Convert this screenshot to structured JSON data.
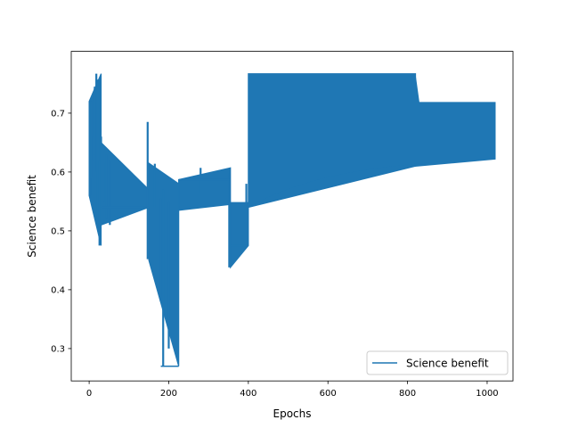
{
  "chart_data": {
    "type": "line",
    "title": "",
    "xlabel": "Epochs",
    "ylabel": "Science benefit",
    "xlim": [
      -45,
      1065
    ],
    "ylim": [
      0.245,
      0.805
    ],
    "x_ticks": [
      0,
      200,
      400,
      600,
      800,
      1000
    ],
    "y_ticks": [
      0.3,
      0.4,
      0.5,
      0.6,
      0.7
    ],
    "x_tick_labels": [
      "0",
      "200",
      "400",
      "600",
      "800",
      "1000"
    ],
    "y_tick_labels": [
      "0.3",
      "0.4",
      "0.5",
      "0.6",
      "0.7"
    ],
    "grid": false,
    "legend": {
      "position": "bottom-right",
      "entries": [
        "Science benefit"
      ]
    },
    "series": [
      {
        "name": "Science benefit",
        "color": "#1f77b4",
        "description_envelope": {
          "segments": [
            {
              "x": [
                0,
                30
              ],
              "upper": [
                0.72,
                0.767
              ],
              "lower": [
                0.56,
                0.475
              ]
            },
            {
              "x": [
                30,
                150
              ],
              "upper": [
                0.65,
                0.57
              ],
              "lower": [
                0.51,
                0.54
              ]
            },
            {
              "x": [
                150,
                225
              ],
              "upper": [
                0.615,
                0.58
              ],
              "lower": [
                0.45,
                0.27
              ]
            },
            {
              "x": [
                225,
                355
              ],
              "upper": [
                0.587,
                0.607
              ],
              "lower": [
                0.535,
                0.545
              ]
            },
            {
              "x": [
                355,
                400
              ],
              "upper": [
                0.548,
                0.548
              ],
              "lower": [
                0.438,
                0.475
              ]
            },
            {
              "x": [
                400,
                820
              ],
              "upper": [
                0.767,
                0.767
              ],
              "lower": [
                0.54,
                0.61
              ]
            },
            {
              "x": [
                820,
                1020
              ],
              "upper": [
                0.718,
                0.718
              ],
              "lower": [
                0.61,
                0.622
              ]
            }
          ]
        }
      }
    ]
  }
}
